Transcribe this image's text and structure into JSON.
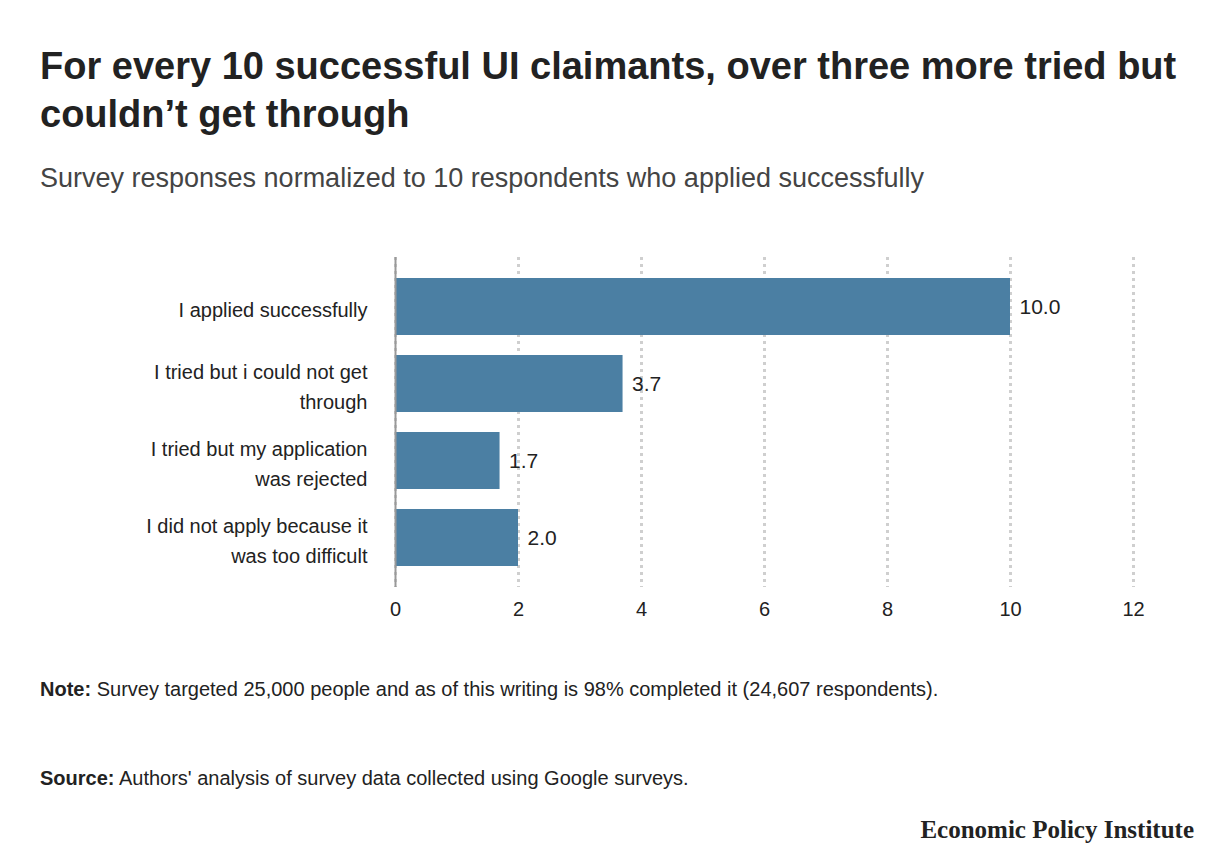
{
  "chart_data": {
    "type": "bar",
    "orientation": "horizontal",
    "title": "For every 10 successful UI claimants, over three more tried but couldn’t get through",
    "subtitle": "Survey responses normalized to 10 respondents who applied successfully",
    "categories": [
      "I applied successfully",
      "I tried but i could not get through",
      "I tried but my application was rejected",
      "I did not apply because it was too difficult"
    ],
    "values": [
      10.0,
      3.7,
      1.7,
      2.0
    ],
    "value_labels": [
      "10.0",
      "3.7",
      "1.7",
      "2.0"
    ],
    "color": "#4b7fa3",
    "xlim": [
      0,
      12
    ],
    "xticks": [
      0,
      2,
      4,
      6,
      8,
      10,
      12
    ],
    "grid": true,
    "data_labels": true,
    "note": {
      "label": "Note:",
      "text": "Survey targeted 25,000 people and as of this writing is 98% completed it (24,607 respondents)."
    },
    "source": {
      "label": "Source:",
      "text": "Authors' analysis of survey data collected using Google surveys."
    },
    "brand": "Economic Policy Institute"
  }
}
